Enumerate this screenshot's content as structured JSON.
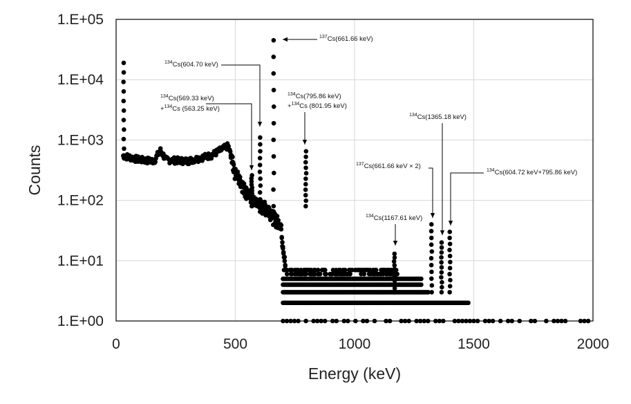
{
  "chart_data": {
    "type": "scatter",
    "title": "",
    "xlabel": "Energy (keV)",
    "ylabel": "Counts",
    "xlim": [
      0,
      2000
    ],
    "ylim": [
      1,
      100000
    ],
    "yscale": "log",
    "grid": true,
    "xticks": [
      "0",
      "500",
      "1000",
      "1500",
      "2000"
    ],
    "yticks": [
      "1.E+00",
      "1.E+01",
      "1.E+02",
      "1.E+03",
      "1.E+04",
      "1.E+05"
    ],
    "marker_color": "#000000",
    "annotations": [
      {
        "sup": "137",
        "text": "Cs(661.66 keV)",
        "arrow_to": [
          661,
          45000
        ]
      },
      {
        "sup": "134",
        "text": "Cs(604.70 keV)",
        "arrow_to": [
          604,
          1300
        ]
      },
      {
        "sup": "134",
        "text": "Cs(569.33 keV)",
        "line2_prefix": "+",
        "sup2": "134",
        "line2": "Cs (563.25 keV)",
        "arrow_to": [
          569,
          260
        ]
      },
      {
        "sup": "134",
        "text": "Cs(795.86 keV)",
        "line2_prefix": "+",
        "sup2": "134",
        "line2": "Cs (801.95 keV)",
        "arrow_to": [
          795,
          800
        ]
      },
      {
        "sup": "134",
        "text": "Cs(1365.18 keV)",
        "arrow_to": [
          1365,
          25
        ]
      },
      {
        "sup": "137",
        "text": "Cs(661.66 keV × 2)",
        "arrow_to": [
          1323,
          40
        ]
      },
      {
        "sup": "134",
        "text": "Cs(604.72 keV+795.86 keV)",
        "arrow_to": [
          1400,
          35
        ]
      },
      {
        "sup": "134",
        "text": "Cs(1167.61 keV)",
        "arrow_to": [
          1167,
          15
        ]
      }
    ],
    "peaks": [
      {
        "x": 32,
        "y": 19000
      },
      {
        "x": 569,
        "y": 260
      },
      {
        "x": 604,
        "y": 1100
      },
      {
        "x": 661,
        "y": 45000
      },
      {
        "x": 796,
        "y": 650
      },
      {
        "x": 1167,
        "y": 13
      },
      {
        "x": 1323,
        "y": 40
      },
      {
        "x": 1365,
        "y": 20
      },
      {
        "x": 1400,
        "y": 30
      }
    ],
    "continuum": [
      {
        "x": 30,
        "y": 550
      },
      {
        "x": 100,
        "y": 470
      },
      {
        "x": 160,
        "y": 450
      },
      {
        "x": 185,
        "y": 680
      },
      {
        "x": 210,
        "y": 470
      },
      {
        "x": 300,
        "y": 450
      },
      {
        "x": 400,
        "y": 560
      },
      {
        "x": 470,
        "y": 800
      },
      {
        "x": 500,
        "y": 300
      },
      {
        "x": 560,
        "y": 120
      },
      {
        "x": 600,
        "y": 85
      },
      {
        "x": 640,
        "y": 75
      },
      {
        "x": 660,
        "y": 55
      },
      {
        "x": 690,
        "y": 40
      },
      {
        "x": 710,
        "y": 8
      },
      {
        "x": 1000,
        "y": 6
      },
      {
        "x": 1200,
        "y": 4
      },
      {
        "x": 1300,
        "y": 3
      },
      {
        "x": 1480,
        "y": 2
      }
    ]
  }
}
